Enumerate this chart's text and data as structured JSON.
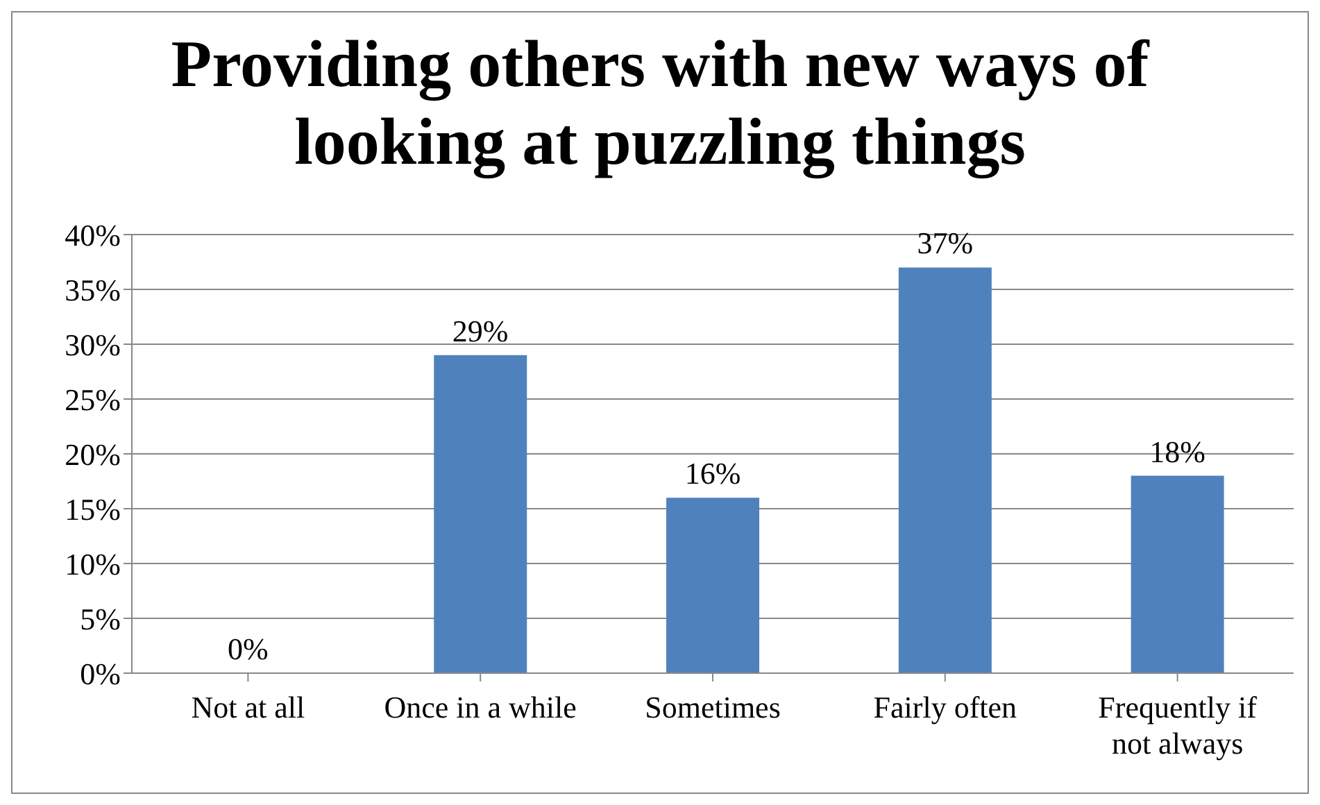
{
  "chart_data": {
    "type": "bar",
    "title": "Providing others with new ways of looking at puzzling things",
    "categories": [
      "Not at all",
      "Once in a while",
      "Sometimes",
      "Fairly often",
      "Frequently if not always"
    ],
    "values": [
      0,
      29,
      16,
      37,
      18
    ],
    "value_labels": [
      "0%",
      "29%",
      "16%",
      "37%",
      "18%"
    ],
    "color": "#4f81bd",
    "ylim": [
      0,
      40
    ],
    "yticks": [
      {
        "value": 0,
        "label": "0%"
      },
      {
        "value": 5,
        "label": "5%"
      },
      {
        "value": 10,
        "label": "10%"
      },
      {
        "value": 15,
        "label": "15%"
      },
      {
        "value": 20,
        "label": "20%"
      },
      {
        "value": 25,
        "label": "25%"
      },
      {
        "value": 30,
        "label": "30%"
      },
      {
        "value": 35,
        "label": "35%"
      },
      {
        "value": 40,
        "label": "40%"
      }
    ],
    "grid": "y"
  }
}
